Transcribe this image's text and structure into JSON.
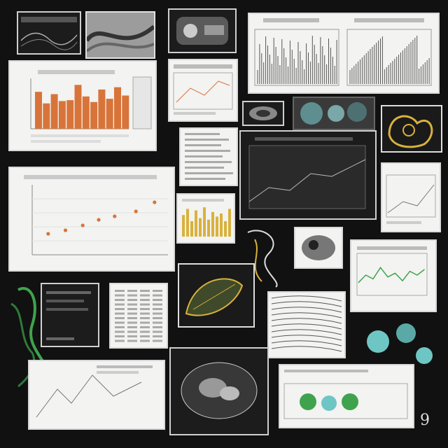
{
  "board": {
    "background": "#111111",
    "accent_orange": "#d8743a",
    "accent_gold": "#d9b13c",
    "accent_green": "#3fa34d",
    "accent_teal": "#6ec6c4",
    "corner_glyph": "9"
  },
  "chart_data": [
    {
      "type": "bar",
      "title": "",
      "xlabel": "",
      "ylabel": "",
      "categories": [
        "",
        "",
        "",
        "",
        "",
        "",
        "",
        "",
        "",
        "",
        "",
        ""
      ],
      "values": [
        0.8,
        0.55,
        0.75,
        0.6,
        0.62,
        0.95,
        0.7,
        0.58,
        0.85,
        0.65,
        0.9,
        0.72
      ],
      "ylim": [
        0,
        1
      ]
    },
    {
      "type": "scatter",
      "title": "",
      "xlabel": "",
      "ylabel": "",
      "series": [
        {
          "x": [
            0.12,
            0.25,
            0.38,
            0.5,
            0.62,
            0.78,
            0.92
          ],
          "y": [
            0.3,
            0.35,
            0.42,
            0.5,
            0.55,
            0.62,
            0.75
          ]
        }
      ],
      "xlim": [
        0,
        1
      ],
      "ylim": [
        0,
        1
      ]
    },
    {
      "type": "line",
      "title": "",
      "series": [
        {
          "values": [
            0.3,
            0.5,
            0.4,
            0.7,
            0.45,
            0.55,
            0.35,
            0.6,
            0.5,
            0.65
          ]
        }
      ]
    }
  ]
}
